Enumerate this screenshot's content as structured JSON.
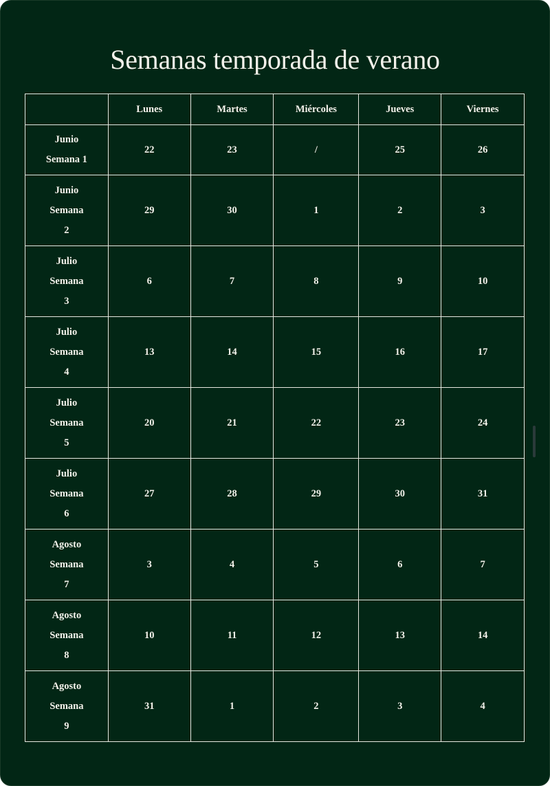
{
  "title": "Semanas temporada de verano",
  "header": [
    "",
    "Lunes",
    "Martes",
    "Miércoles",
    "Jueves",
    "Viernes"
  ],
  "rows": [
    {
      "month": "Junio",
      "week": "Semana 1",
      "days": [
        "22",
        "23",
        "/",
        "25",
        "26"
      ]
    },
    {
      "month": "Junio",
      "week": "Semana",
      "num": "2",
      "days": [
        "29",
        "30",
        "1",
        "2",
        "3"
      ]
    },
    {
      "month": "Julio",
      "week": "Semana",
      "num": "3",
      "days": [
        "6",
        "7",
        "8",
        "9",
        "10"
      ]
    },
    {
      "month": "Julio",
      "week": "Semana",
      "num": "4",
      "days": [
        "13",
        "14",
        "15",
        "16",
        "17"
      ]
    },
    {
      "month": "Julio",
      "week": "Semana",
      "num": "5",
      "days": [
        "20",
        "21",
        "22",
        "23",
        "24"
      ]
    },
    {
      "month": "Julio",
      "week": "Semana",
      "num": "6",
      "days": [
        "27",
        "28",
        "29",
        "30",
        "31"
      ]
    },
    {
      "month": "Agosto",
      "week": "Semana",
      "num": "7",
      "days": [
        "3",
        "4",
        "5",
        "6",
        "7"
      ]
    },
    {
      "month": "Agosto",
      "week": "Semana",
      "num": "8",
      "days": [
        "10",
        "11",
        "12",
        "13",
        "14"
      ]
    },
    {
      "month": "Agosto",
      "week": "Semana",
      "num": "9",
      "days": [
        "31",
        "1",
        "2",
        "3",
        "4"
      ]
    }
  ],
  "colors": {
    "background": "#022615",
    "text": "#f3f1ea",
    "border": "#e8e8e0"
  }
}
